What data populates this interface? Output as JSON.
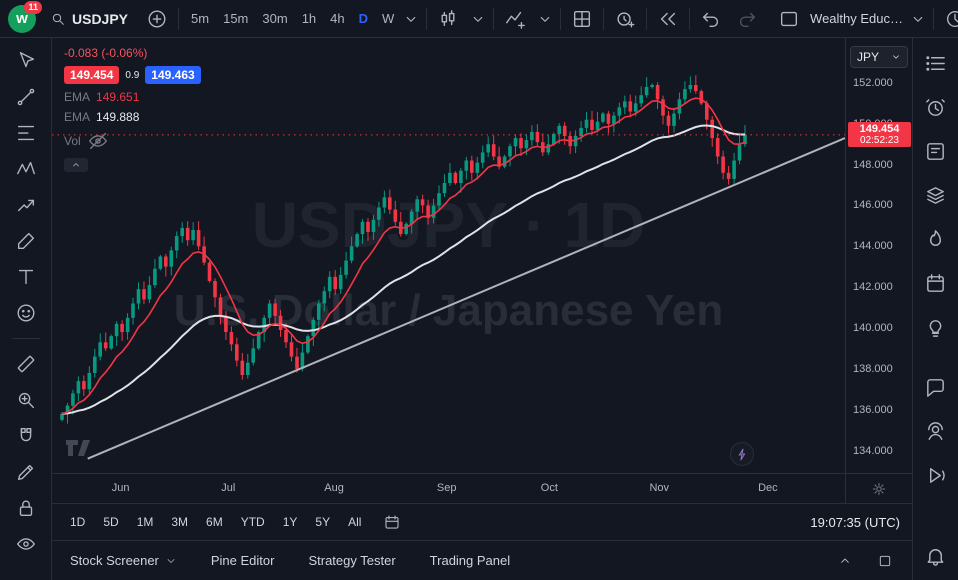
{
  "topbar": {
    "logo_text": "w",
    "badge": "11",
    "symbol": "USDJPY",
    "intervals": [
      "5m",
      "15m",
      "30m",
      "1h",
      "4h",
      "D",
      "W"
    ],
    "active_interval": "D",
    "layout_name": "Wealthy Educ…"
  },
  "legend": {
    "change": "-0.083 (-0.06%)",
    "bid": "149.454",
    "spread": "0.9",
    "ask": "149.463",
    "ema_fast_label": "EMA",
    "ema_fast_value": "149.651",
    "ema_slow_label": "EMA",
    "ema_slow_value": "149.888",
    "vol_label": "Vol"
  },
  "watermark": {
    "line1": "USDJPY · 1D",
    "line2": "U.S. Dollar / Japanese Yen"
  },
  "price_scale": {
    "currency": "JPY",
    "last_price": "149.454",
    "countdown": "02:52:23"
  },
  "time_axis": {
    "months": [
      {
        "label": "Jun",
        "f": 0.088
      },
      {
        "label": "Jul",
        "f": 0.226
      },
      {
        "label": "Aug",
        "f": 0.356
      },
      {
        "label": "Sep",
        "f": 0.498
      },
      {
        "label": "Oct",
        "f": 0.629
      },
      {
        "label": "Nov",
        "f": 0.766
      },
      {
        "label": "Dec",
        "f": 0.903
      }
    ]
  },
  "ranges": [
    "1D",
    "5D",
    "1M",
    "3M",
    "6M",
    "YTD",
    "1Y",
    "5Y",
    "All"
  ],
  "clock_utc": "19:07:35 (UTC)",
  "bottom_tabs": [
    "Stock Screener",
    "Pine Editor",
    "Strategy Tester",
    "Trading Panel"
  ],
  "chart_data": {
    "type": "candlestick",
    "symbol": "USDJPY",
    "interval": "1D",
    "price_min": 132.9,
    "price_max": 154.2,
    "y_ticks": [
      152,
      150,
      148,
      146,
      144,
      142,
      140,
      138,
      136,
      134
    ],
    "last_price": 149.454,
    "first_open": 135.5,
    "closes": [
      135.8,
      136.2,
      136.8,
      137.4,
      137.0,
      137.8,
      138.6,
      139.3,
      139.0,
      139.6,
      140.2,
      139.8,
      140.5,
      141.2,
      141.9,
      141.4,
      142.1,
      142.9,
      143.5,
      143.0,
      143.8,
      144.5,
      144.9,
      144.3,
      144.8,
      144.0,
      143.2,
      142.3,
      141.5,
      140.6,
      139.8,
      139.2,
      138.4,
      137.7,
      138.3,
      139.0,
      139.8,
      140.5,
      141.2,
      140.6,
      139.9,
      139.3,
      138.6,
      138.0,
      138.8,
      139.6,
      140.4,
      141.2,
      141.8,
      142.5,
      141.9,
      142.6,
      143.3,
      144.0,
      144.6,
      145.2,
      144.7,
      145.3,
      145.9,
      146.4,
      145.8,
      145.2,
      144.6,
      145.1,
      145.7,
      146.3,
      146.0,
      145.4,
      146.0,
      146.6,
      147.1,
      147.6,
      147.1,
      147.7,
      148.2,
      147.6,
      148.1,
      148.6,
      149.0,
      148.4,
      147.9,
      148.4,
      148.9,
      149.3,
      148.8,
      149.2,
      149.6,
      149.1,
      148.6,
      149.0,
      149.5,
      149.9,
      149.4,
      148.9,
      149.4,
      149.8,
      150.2,
      149.7,
      150.1,
      150.5,
      150.0,
      150.4,
      150.8,
      151.1,
      150.6,
      151.0,
      151.4,
      151.8,
      151.9,
      151.2,
      150.4,
      149.9,
      150.5,
      151.2,
      151.7,
      151.9,
      151.6,
      151.0,
      150.2,
      149.3,
      148.4,
      147.6,
      147.3,
      148.2,
      149.0,
      149.454
    ],
    "emas": [
      {
        "name": "EMA slow",
        "period": 38,
        "color": "#dfe2e7",
        "width": 2,
        "last_value": "149.888"
      },
      {
        "name": "EMA fast",
        "period": 9,
        "color": "#f23645",
        "width": 1.6,
        "last_value": "149.651"
      }
    ],
    "trendline": {
      "x1f": 0.045,
      "p1": 133.6,
      "x2f": 1.0,
      "p2": 149.3,
      "color": "#b0b3bb"
    },
    "colors": {
      "up": "#089981",
      "down": "#f23645",
      "accent": "#2962ff",
      "last_line": "#f23645"
    }
  }
}
